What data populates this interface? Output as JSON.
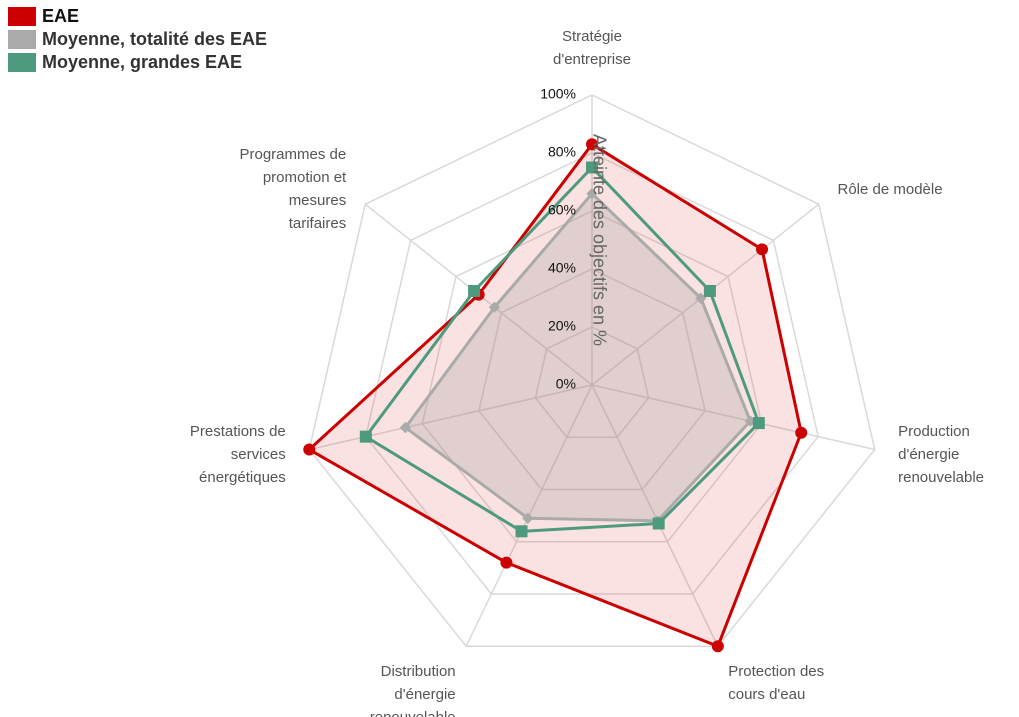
{
  "chart_data": {
    "type": "radar",
    "categories": [
      "Stratégie\nd'entreprise",
      "Rôle de modèle",
      "Production\nd'énergie\nrenouvelable",
      "Protection des\ncours d'eau",
      "Distribution\nd'énergie\nrenouvelable",
      "Prestations de\nservices\nénergétiques",
      "Programmes de\npromotion et\nmesures\ntarifaires"
    ],
    "series": [
      {
        "name": "EAE",
        "color": "#cc0000",
        "values": [
          83,
          75,
          74,
          100,
          68,
          100,
          50
        ]
      },
      {
        "name": "Moyenne, totalité des EAE",
        "color": "#aaaaaa",
        "values": [
          66,
          48,
          56,
          52,
          51,
          66,
          43
        ]
      },
      {
        "name": "Moyenne, grandes EAE",
        "color": "#4e9a7e",
        "values": [
          75,
          52,
          59,
          53,
          56,
          80,
          52
        ]
      }
    ],
    "ylabel": "Atteinte des objectifs en %",
    "ylim": [
      0,
      100
    ],
    "yticks": [
      {
        "value": 0,
        "label": "0%"
      },
      {
        "value": 20,
        "label": "20%"
      },
      {
        "value": 40,
        "label": "40%"
      },
      {
        "value": 60,
        "label": "60%"
      },
      {
        "value": 80,
        "label": "80%"
      },
      {
        "value": 100,
        "label": "100%"
      }
    ],
    "grid": true,
    "legend": "top-left"
  }
}
